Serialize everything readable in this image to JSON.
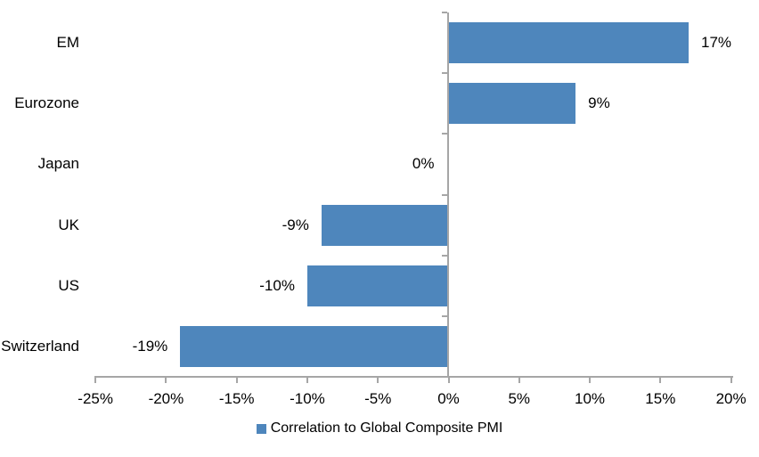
{
  "chart_data": {
    "type": "bar",
    "orientation": "horizontal",
    "title": "",
    "categories": [
      "EM",
      "Eurozone",
      "Japan",
      "UK",
      "US",
      "Switzerland"
    ],
    "values": [
      17,
      9,
      0,
      -9,
      -10,
      -19
    ],
    "value_labels": [
      "17%",
      "9%",
      "0%",
      "-9%",
      "-10%",
      "-19%"
    ],
    "series_name": "Correlation to Global Composite PMI",
    "xlim": [
      -25,
      20
    ],
    "x_ticks": [
      -25,
      -20,
      -15,
      -10,
      -5,
      0,
      5,
      10,
      15,
      20
    ],
    "x_tick_labels": [
      "-25%",
      "-20%",
      "-15%",
      "-10%",
      "-5%",
      "0%",
      "5%",
      "10%",
      "15%",
      "20%"
    ],
    "grid": false,
    "legend_position": "bottom-center",
    "bar_color": "#4E86BC",
    "axis_color": "#A6A6A6",
    "text_color": "#000000"
  }
}
